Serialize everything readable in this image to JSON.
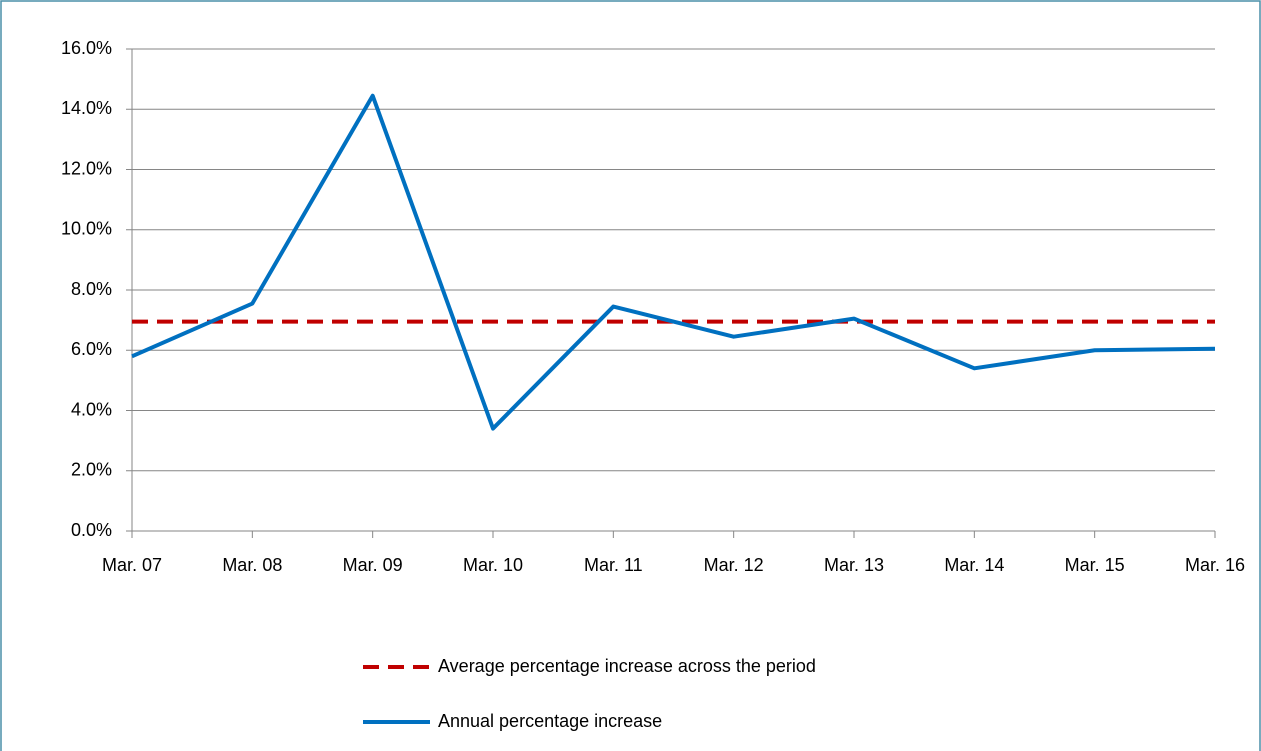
{
  "chart_data": {
    "type": "line",
    "categories": [
      "Mar. 07",
      "Mar. 08",
      "Mar. 09",
      "Mar. 10",
      "Mar. 11",
      "Mar. 12",
      "Mar. 13",
      "Mar. 14",
      "Mar. 15",
      "Mar. 16"
    ],
    "series": [
      {
        "name": "Average percentage increase across the period",
        "color": "#c00000",
        "dashed": true,
        "values": [
          6.95,
          6.95,
          6.95,
          6.95,
          6.95,
          6.95,
          6.95,
          6.95,
          6.95,
          6.95
        ]
      },
      {
        "name": "Annual percentage increase",
        "color": "#0070c0",
        "dashed": false,
        "values": [
          5.8,
          7.55,
          14.45,
          3.4,
          7.45,
          6.45,
          7.05,
          5.4,
          6.0,
          6.05
        ]
      }
    ],
    "ylim": [
      0,
      16
    ],
    "yticks": [
      {
        "value": 0,
        "label": "0.0%"
      },
      {
        "value": 2,
        "label": "2.0%"
      },
      {
        "value": 4,
        "label": "4.0%"
      },
      {
        "value": 6,
        "label": "6.0%"
      },
      {
        "value": 8,
        "label": "8.0%"
      },
      {
        "value": 10,
        "label": "10.0%"
      },
      {
        "value": 12,
        "label": "12.0%"
      },
      {
        "value": 14,
        "label": "14.0%"
      },
      {
        "value": 16,
        "label": "16.0%"
      }
    ],
    "grid": true,
    "legend": "bottom"
  }
}
